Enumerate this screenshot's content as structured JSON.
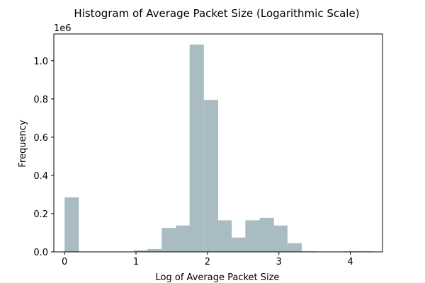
{
  "chart_data": {
    "type": "bar",
    "title": "Histogram of Average Packet Size (Logarithmic Scale)",
    "xlabel": "Log of Average Packet Size",
    "ylabel": "Frequency",
    "y_offset_label": "1e6",
    "xlim": [
      -0.15,
      4.45
    ],
    "ylim": [
      0,
      1.14
    ],
    "y_scale_factor": 1000000,
    "grid": false,
    "bar_color": "#a9bcc1",
    "bin_width": 0.2,
    "bins": [
      {
        "x0": 0.0,
        "value": 0.285
      },
      {
        "x0": 0.2,
        "value": 0.0
      },
      {
        "x0": 0.4,
        "value": 0.0
      },
      {
        "x0": 0.6,
        "value": 0.0
      },
      {
        "x0": 0.8,
        "value": 0.0
      },
      {
        "x0": 0.97,
        "value": 0.008
      },
      {
        "x0": 1.16,
        "value": 0.015
      },
      {
        "x0": 1.36,
        "value": 0.125
      },
      {
        "x0": 1.56,
        "value": 0.138
      },
      {
        "x0": 1.75,
        "value": 1.085
      },
      {
        "x0": 1.95,
        "value": 0.795
      },
      {
        "x0": 2.14,
        "value": 0.165
      },
      {
        "x0": 2.34,
        "value": 0.075
      },
      {
        "x0": 2.53,
        "value": 0.165
      },
      {
        "x0": 2.73,
        "value": 0.178
      },
      {
        "x0": 2.92,
        "value": 0.138
      },
      {
        "x0": 3.12,
        "value": 0.045
      },
      {
        "x0": 3.31,
        "value": 0.003
      },
      {
        "x0": 3.51,
        "value": 0.0
      },
      {
        "x0": 3.7,
        "value": 0.0
      },
      {
        "x0": 3.9,
        "value": 0.003
      },
      {
        "x0": 4.09,
        "value": 0.003
      }
    ],
    "x_ticks": [
      {
        "value": 0,
        "label": "0"
      },
      {
        "value": 1,
        "label": "1"
      },
      {
        "value": 2,
        "label": "2"
      },
      {
        "value": 3,
        "label": "3"
      },
      {
        "value": 4,
        "label": "4"
      }
    ],
    "y_ticks": [
      {
        "value": 0.0,
        "label": "0.0"
      },
      {
        "value": 0.2,
        "label": "0.2"
      },
      {
        "value": 0.4,
        "label": "0.4"
      },
      {
        "value": 0.6,
        "label": "0.6"
      },
      {
        "value": 0.8,
        "label": "0.8"
      },
      {
        "value": 1.0,
        "label": "1.0"
      }
    ]
  }
}
